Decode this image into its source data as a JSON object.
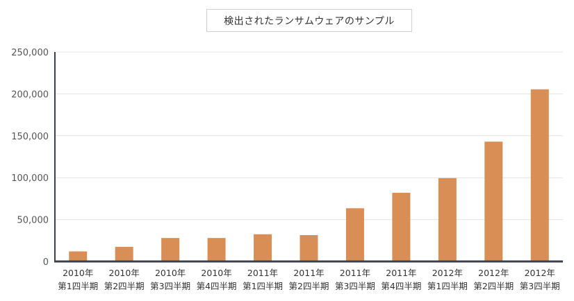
{
  "chart_data": {
    "type": "bar",
    "title": "検出されたランサムウェアのサンプル",
    "xlabel": "",
    "ylabel": "",
    "categories": [
      [
        "2010年",
        "第1四半期"
      ],
      [
        "2010年",
        "第2四半期"
      ],
      [
        "2010年",
        "第3四半期"
      ],
      [
        "2010年",
        "第4四半期"
      ],
      [
        "2011年",
        "第1四半期"
      ],
      [
        "2011年",
        "第2四半期"
      ],
      [
        "2011年",
        "第3四半期"
      ],
      [
        "2011年",
        "第4四半期"
      ],
      [
        "2012年",
        "第1四半期"
      ],
      [
        "2012年",
        "第2四半期"
      ],
      [
        "2012年",
        "第3四半期"
      ]
    ],
    "values": [
      12000,
      17500,
      28000,
      28000,
      32500,
      31500,
      63500,
      82000,
      99500,
      143000,
      205500
    ],
    "ylim": [
      0,
      250000
    ],
    "yticks": [
      0,
      50000,
      100000,
      150000,
      200000,
      250000
    ],
    "ytick_labels": [
      "0",
      "50,000",
      "100,000",
      "150,000",
      "200,000",
      "250,000"
    ],
    "grid": true,
    "legend": "none",
    "colors": {
      "bar": "#d98e55",
      "axis": "#3a3f4a",
      "grid": "#e4e4e4"
    }
  }
}
